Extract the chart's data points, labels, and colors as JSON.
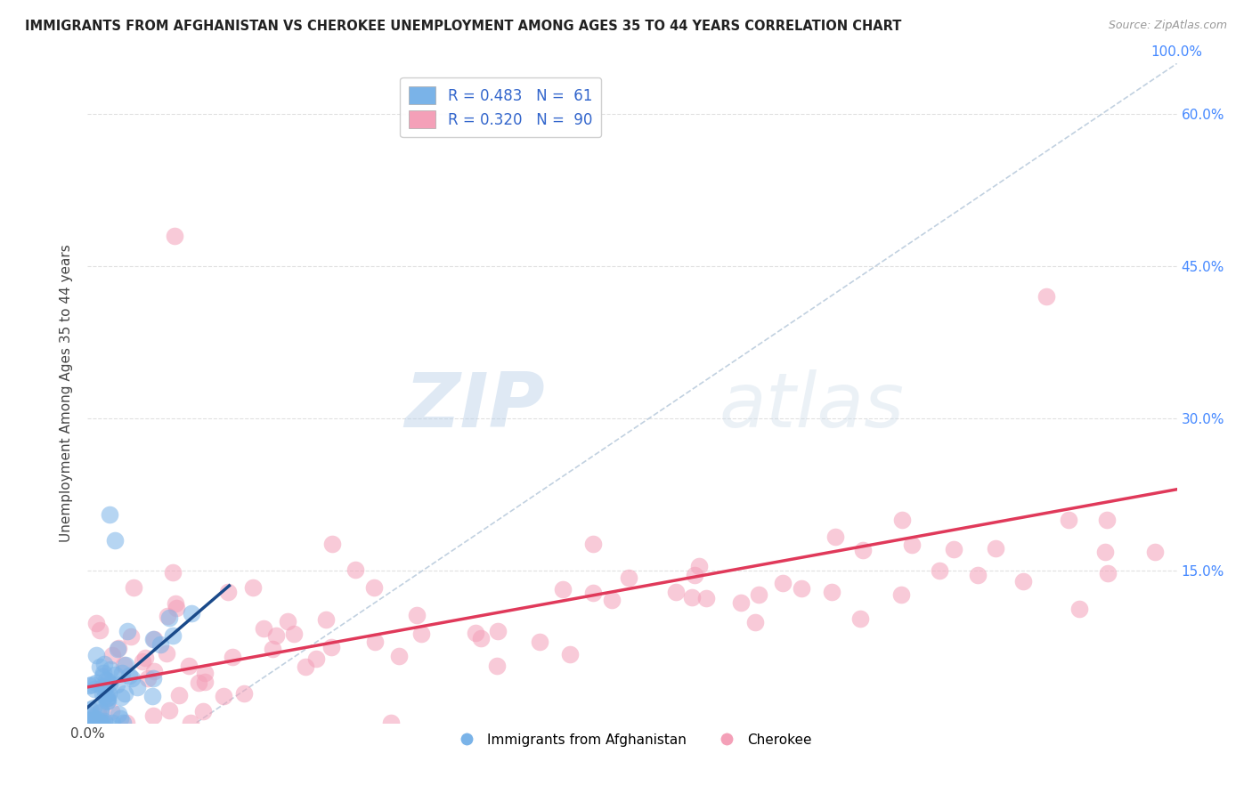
{
  "title": "IMMIGRANTS FROM AFGHANISTAN VS CHEROKEE UNEMPLOYMENT AMONG AGES 35 TO 44 YEARS CORRELATION CHART",
  "source": "Source: ZipAtlas.com",
  "ylabel": "Unemployment Among Ages 35 to 44 years",
  "xlim": [
    0,
    100
  ],
  "ylim": [
    0,
    65
  ],
  "ytick_positions": [
    15,
    30,
    45,
    60
  ],
  "ytick_labels": [
    "15.0%",
    "30.0%",
    "45.0%",
    "60.0%"
  ],
  "xtick_labels_left": [
    "0.0%"
  ],
  "xtick_labels_right": [
    "100.0%"
  ],
  "watermark_zip": "ZIP",
  "watermark_atlas": "atlas",
  "legend_entries": [
    {
      "label": "R = 0.483   N =  61",
      "color": "#aaccff"
    },
    {
      "label": "R = 0.320   N =  90",
      "color": "#ffaabb"
    }
  ],
  "legend_bottom": [
    "Immigrants from Afghanistan",
    "Cherokee"
  ],
  "blue_scatter_color": "#7ab3e8",
  "pink_scatter_color": "#f4a0b8",
  "blue_line_color": "#1a4a8a",
  "pink_line_color": "#e0395a",
  "diag_line_color": "#bbccdd",
  "background_color": "#ffffff",
  "grid_color": "#dddddd",
  "blue_N": 61,
  "pink_N": 90,
  "blue_line_x0": 0.0,
  "blue_line_y0": 1.5,
  "blue_line_x1": 13.0,
  "blue_line_y1": 13.5,
  "pink_line_x0": 0.0,
  "pink_line_y0": 3.5,
  "pink_line_x1": 100.0,
  "pink_line_y1": 23.0,
  "diag_x0": 10,
  "diag_y0": 0,
  "diag_x1": 100,
  "diag_y1": 65
}
